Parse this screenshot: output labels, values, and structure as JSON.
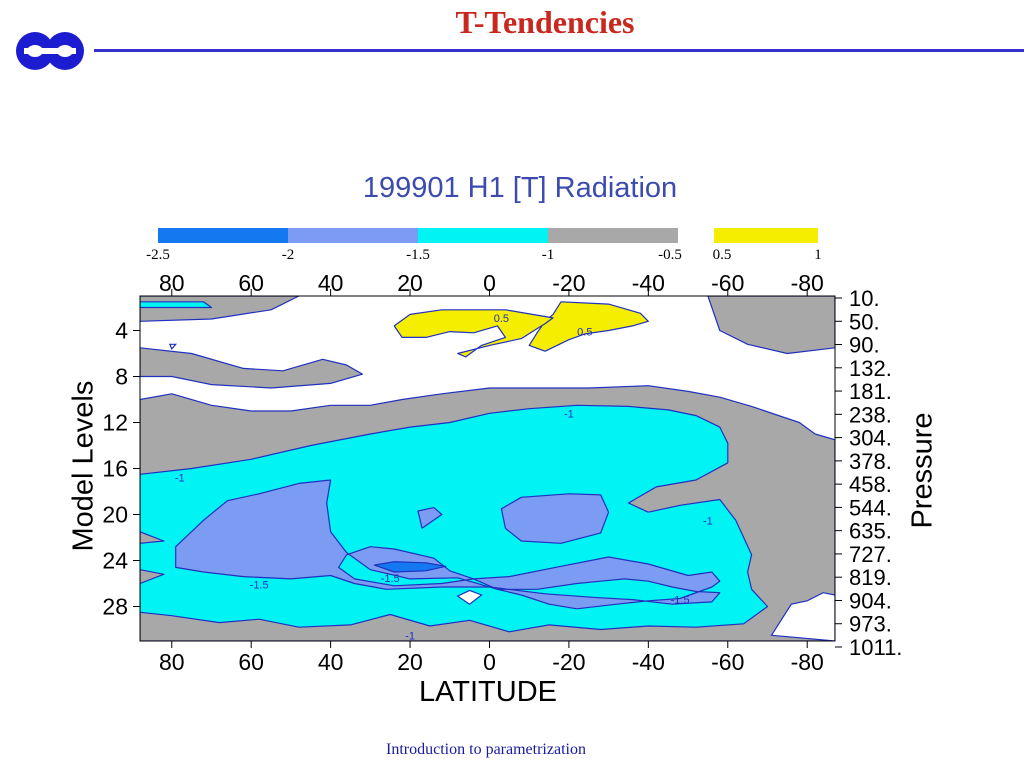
{
  "slide": {
    "title": "T-Tendencies",
    "footer": "Introduction to parametrization",
    "logo_icon": "ecmwf-logo-icon",
    "title_color": "#c8281e",
    "rule_color": "#3333cc"
  },
  "chart_data": {
    "type": "heatmap",
    "title": "199901 H1  [T] Radiation",
    "xlabel": "LATITUDE",
    "ylabel": "Model Levels",
    "ylabel_right": "Pressure",
    "x_ticks": [
      "80",
      "60",
      "40",
      "20",
      "0",
      "-20",
      "-40",
      "-60",
      "-80"
    ],
    "x_tick_values": [
      80,
      60,
      40,
      20,
      0,
      -20,
      -40,
      -60,
      -80
    ],
    "xlim": [
      88,
      -87
    ],
    "y_ticks": [
      "4",
      "8",
      "12",
      "16",
      "20",
      "24",
      "28"
    ],
    "y_tick_values": [
      4,
      8,
      12,
      16,
      20,
      24,
      28
    ],
    "ylim": [
      1,
      31
    ],
    "pressure_ticks": [
      "10.",
      "50.",
      "90.",
      "132.",
      "181.",
      "238.",
      "304.",
      "378.",
      "458.",
      "544.",
      "635.",
      "727.",
      "819.",
      "904.",
      "973.",
      "1011."
    ],
    "colorbar": {
      "labels": [
        "-2.5",
        "-2",
        "-1.5",
        "-1",
        "-0.5",
        "0.5",
        "1"
      ],
      "bins": [
        {
          "from": -2.5,
          "to": -2.0,
          "color": "#1478f0"
        },
        {
          "from": -2.0,
          "to": -1.5,
          "color": "#7b9cf2"
        },
        {
          "from": -1.5,
          "to": -1.0,
          "color": "#00f4f4"
        },
        {
          "from": -1.0,
          "to": -0.5,
          "color": "#a8a8a8"
        },
        {
          "from": 0.5,
          "to": 1.0,
          "color": "#f6ee00"
        }
      ]
    },
    "contour_labels": [
      "0.5",
      "0.5",
      "-1",
      "-1",
      "-1",
      "-1.5",
      "-1.5",
      "-1.5",
      "-1"
    ],
    "regions": [
      {
        "level": -0.5,
        "color": "#a8a8a8",
        "points": [
          [
            88,
            31
          ],
          [
            88,
            10
          ],
          [
            80,
            9.5
          ],
          [
            70,
            10.5
          ],
          [
            60,
            11
          ],
          [
            50,
            11
          ],
          [
            40,
            10.5
          ],
          [
            30,
            10.5
          ],
          [
            22,
            10
          ],
          [
            12,
            9.5
          ],
          [
            0,
            9
          ],
          [
            -12,
            9
          ],
          [
            -25,
            9
          ],
          [
            -40,
            8.8
          ],
          [
            -50,
            9.3
          ],
          [
            -58,
            9.8
          ],
          [
            -66,
            10.6
          ],
          [
            -72,
            11.3
          ],
          [
            -78,
            12
          ],
          [
            -82,
            13
          ],
          [
            -87,
            13.5
          ],
          [
            -87,
            31
          ]
        ]
      },
      {
        "level": -0.5,
        "color": "#a8a8a8",
        "points": [
          [
            88,
            3.2
          ],
          [
            70,
            3
          ],
          [
            55,
            2.2
          ],
          [
            48,
            1
          ],
          [
            88,
            1
          ]
        ]
      },
      {
        "level": -0.5,
        "color": "#a8a8a8",
        "points": [
          [
            88,
            5.5
          ],
          [
            75,
            6
          ],
          [
            62,
            7.3
          ],
          [
            52,
            7.5
          ],
          [
            42,
            6.5
          ],
          [
            36,
            7
          ],
          [
            32,
            7.8
          ],
          [
            40,
            8.6
          ],
          [
            55,
            9
          ],
          [
            70,
            8.7
          ],
          [
            80,
            8
          ],
          [
            88,
            8
          ]
        ]
      },
      {
        "level": -0.5,
        "color": "#a8a8a8",
        "points": [
          [
            -55,
            1
          ],
          [
            -87,
            1
          ],
          [
            -87,
            5.5
          ],
          [
            -75,
            6
          ],
          [
            -65,
            5.2
          ],
          [
            -58,
            4
          ]
        ]
      },
      {
        "level": -1.0,
        "color": "#00f4f4",
        "points": [
          [
            88,
            16.5
          ],
          [
            75,
            16
          ],
          [
            60,
            15.2
          ],
          [
            45,
            14
          ],
          [
            30,
            13
          ],
          [
            20,
            12.4
          ],
          [
            10,
            12
          ],
          [
            0,
            11.2
          ],
          [
            -10,
            10.8
          ],
          [
            -22,
            10.5
          ],
          [
            -35,
            10.6
          ],
          [
            -45,
            10.9
          ],
          [
            -52,
            11.4
          ],
          [
            -58,
            12.4
          ],
          [
            -60,
            13.8
          ],
          [
            -60,
            15.5
          ],
          [
            -52,
            17
          ],
          [
            -42,
            17.6
          ],
          [
            -35,
            19
          ],
          [
            -40,
            19.8
          ],
          [
            -48,
            19.2
          ],
          [
            -58,
            18.7
          ],
          [
            -62,
            20.5
          ],
          [
            -64,
            22
          ],
          [
            -66,
            23.5
          ],
          [
            -65,
            25
          ],
          [
            -66,
            26.5
          ],
          [
            -70,
            28
          ],
          [
            -64,
            29.5
          ],
          [
            -52,
            29.8
          ],
          [
            -40,
            29.7
          ],
          [
            -28,
            30
          ],
          [
            -15,
            29.6
          ],
          [
            -5,
            30.2
          ],
          [
            5,
            29.2
          ],
          [
            15,
            29.7
          ],
          [
            25,
            28.7
          ],
          [
            35,
            29.6
          ],
          [
            48,
            29.8
          ],
          [
            58,
            29.1
          ],
          [
            68,
            29.4
          ],
          [
            80,
            28.8
          ],
          [
            88,
            28.5
          ],
          [
            88,
            26
          ],
          [
            82,
            25.2
          ],
          [
            88,
            24.8
          ],
          [
            88,
            22.5
          ],
          [
            82,
            22.3
          ],
          [
            88,
            21.5
          ]
        ]
      },
      {
        "level": -1.0,
        "color": "#00f4f4",
        "points": [
          [
            88,
            1.5
          ],
          [
            72,
            1.5
          ],
          [
            70,
            2
          ],
          [
            88,
            2
          ]
        ]
      },
      {
        "level": -1.5,
        "color": "#7b9cf2",
        "points": [
          [
            79,
            22.8
          ],
          [
            72,
            20.5
          ],
          [
            66,
            18.8
          ],
          [
            58,
            18.2
          ],
          [
            48,
            17.3
          ],
          [
            40,
            17
          ],
          [
            41,
            19
          ],
          [
            40,
            21.5
          ],
          [
            36,
            23.3
          ],
          [
            30,
            24.8
          ],
          [
            20,
            25.6
          ],
          [
            8,
            25.5
          ],
          [
            -2,
            26.5
          ],
          [
            -8,
            27
          ],
          [
            -15,
            27.8
          ],
          [
            -22,
            28.2
          ],
          [
            -32,
            27.8
          ],
          [
            -40,
            27.5
          ],
          [
            -48,
            27.3
          ],
          [
            -56,
            26.3
          ],
          [
            -58,
            25.8
          ],
          [
            -56,
            25
          ],
          [
            -50,
            25.3
          ],
          [
            -40,
            24.3
          ],
          [
            -30,
            23.7
          ],
          [
            -18,
            24.5
          ],
          [
            -5,
            25.4
          ],
          [
            4,
            25.6
          ],
          [
            10,
            24.9
          ],
          [
            14,
            23.8
          ],
          [
            24,
            23
          ],
          [
            30,
            22.8
          ],
          [
            36,
            23.5
          ],
          [
            38,
            24.6
          ],
          [
            34,
            25.6
          ],
          [
            24,
            26.2
          ],
          [
            12,
            26
          ],
          [
            4,
            25.6
          ],
          [
            -2,
            26.5
          ],
          [
            -12,
            26.5
          ],
          [
            -22,
            26
          ],
          [
            -28,
            25.8
          ],
          [
            -34,
            25.6
          ],
          [
            -40,
            25.8
          ],
          [
            -46,
            26.3
          ],
          [
            -52,
            26.7
          ],
          [
            -58,
            26.8
          ],
          [
            -56,
            27.6
          ],
          [
            -46,
            27.8
          ],
          [
            -36,
            27.4
          ],
          [
            -26,
            27.2
          ],
          [
            -14,
            26.9
          ],
          [
            0,
            26.3
          ],
          [
            12,
            26.3
          ],
          [
            26,
            26.5
          ],
          [
            34,
            26
          ],
          [
            40,
            25.3
          ],
          [
            50,
            25.6
          ],
          [
            62,
            25.4
          ],
          [
            72,
            25
          ],
          [
            79,
            24.6
          ]
        ]
      },
      {
        "level": -1.5,
        "color": "#7b9cf2",
        "points": [
          [
            -3,
            19.5
          ],
          [
            -8,
            18.5
          ],
          [
            -20,
            18.2
          ],
          [
            -28,
            18.3
          ],
          [
            -30,
            19.8
          ],
          [
            -28,
            21.6
          ],
          [
            -18,
            22.5
          ],
          [
            -8,
            22.3
          ],
          [
            -4,
            21.2
          ]
        ]
      },
      {
        "level": -1.5,
        "color": "#7b9cf2",
        "points": [
          [
            17,
            21.2
          ],
          [
            12,
            20
          ],
          [
            14,
            19.4
          ],
          [
            18,
            19.7
          ]
        ]
      },
      {
        "level": -2.0,
        "color": "#1478f0",
        "points": [
          [
            29,
            24.4
          ],
          [
            24,
            24.1
          ],
          [
            16,
            24.2
          ],
          [
            11,
            24.5
          ],
          [
            16,
            24.9
          ],
          [
            24,
            25
          ]
        ]
      },
      {
        "level": 0.5,
        "color": "#f6ee00",
        "points": [
          [
            -40,
            3.2
          ],
          [
            -38,
            2.5
          ],
          [
            -30,
            1.7
          ],
          [
            -18,
            1.5
          ],
          [
            -16,
            2.6
          ],
          [
            -14,
            3.2
          ],
          [
            -12,
            4.2
          ],
          [
            -10,
            5.3
          ],
          [
            -14,
            5.8
          ],
          [
            -20,
            4.8
          ],
          [
            -24,
            4.3
          ],
          [
            -30,
            4
          ],
          [
            -36,
            3.6
          ]
        ]
      },
      {
        "level": 0.5,
        "color": "#f6ee00",
        "points": [
          [
            24,
            3.6
          ],
          [
            20,
            2.6
          ],
          [
            12,
            2.2
          ],
          [
            -4,
            2.2
          ],
          [
            -16,
            2.9
          ],
          [
            -14,
            3.4
          ],
          [
            -8,
            4.7
          ],
          [
            0,
            5.3
          ],
          [
            8,
            6
          ],
          [
            6,
            6.3
          ],
          [
            2,
            5.3
          ],
          [
            -4,
            4.6
          ],
          [
            -2,
            3.6
          ],
          [
            4,
            4.2
          ],
          [
            10,
            4.1
          ],
          [
            16,
            4.6
          ],
          [
            22,
            4.6
          ]
        ]
      }
    ],
    "white_spots": [
      {
        "points": [
          [
            -71,
            30.5
          ],
          [
            -76,
            27.8
          ],
          [
            -80,
            27.5
          ],
          [
            -84,
            26.8
          ],
          [
            -87,
            27
          ],
          [
            -87,
            31
          ]
        ]
      },
      {
        "points": [
          [
            5,
            27.8
          ],
          [
            2,
            27
          ],
          [
            5,
            26.6
          ],
          [
            8,
            27.1
          ]
        ]
      },
      {
        "points": [
          [
            80,
            5.6
          ],
          [
            79,
            5.2
          ],
          [
            80.5,
            5.2
          ]
        ]
      }
    ]
  }
}
